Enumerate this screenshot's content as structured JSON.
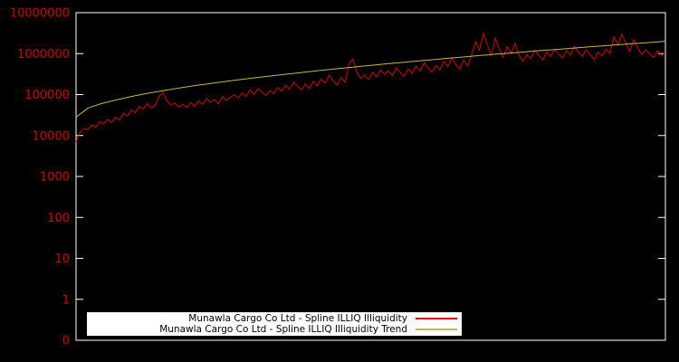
{
  "colors": {
    "background": "#000000",
    "border": "#ffffff",
    "tick_label": "#d40000",
    "legend_background": "#ffffff",
    "legend_text": "#000000"
  },
  "chart_data": {
    "type": "line",
    "title": "",
    "xlabel": "",
    "ylabel": "",
    "x_axis": {
      "tick_labels_visible": false
    },
    "y_axis": {
      "scale": "log",
      "tick_labels": [
        "10000000",
        "1000000",
        "100000",
        "10000",
        "1000",
        "100",
        "10",
        "1",
        "0"
      ],
      "tick_values": [
        10000000,
        1000000,
        100000,
        10000,
        1000,
        100,
        10,
        1,
        0.1
      ],
      "range_top": 10000000,
      "range_bottom": 0.1
    },
    "legend": {
      "position": "bottom-center"
    },
    "series": [
      {
        "name": "Munawla Cargo Co Ltd - Spline ILLIQ Illiquidity",
        "color": "#d40000",
        "values": [
          7000,
          12000,
          15000,
          14000,
          18000,
          16000,
          22000,
          19000,
          25000,
          21000,
          28000,
          24000,
          35000,
          30000,
          42000,
          36000,
          52000,
          44000,
          60000,
          47000,
          55000,
          90000,
          110000,
          70000,
          55000,
          62000,
          50000,
          58000,
          48000,
          65000,
          52000,
          70000,
          58000,
          80000,
          65000,
          75000,
          60000,
          90000,
          72000,
          85000,
          100000,
          82000,
          110000,
          90000,
          130000,
          100000,
          140000,
          115000,
          95000,
          125000,
          105000,
          150000,
          120000,
          170000,
          135000,
          200000,
          160000,
          130000,
          180000,
          140000,
          210000,
          165000,
          240000,
          190000,
          300000,
          220000,
          170000,
          260000,
          200000,
          550000,
          750000,
          350000,
          250000,
          300000,
          230000,
          350000,
          270000,
          400000,
          310000,
          380000,
          290000,
          450000,
          340000,
          280000,
          420000,
          330000,
          500000,
          380000,
          600000,
          450000,
          350000,
          520000,
          400000,
          650000,
          480000,
          800000,
          550000,
          420000,
          700000,
          500000,
          900000,
          2000000,
          1200000,
          3200000,
          1600000,
          900000,
          2400000,
          1300000,
          800000,
          1500000,
          1000000,
          1800000,
          900000,
          650000,
          950000,
          750000,
          1200000,
          900000,
          700000,
          1100000,
          850000,
          1300000,
          1000000,
          780000,
          1200000,
          920000,
          1500000,
          1100000,
          850000,
          1250000,
          950000,
          700000,
          1100000,
          880000,
          1300000,
          1000000,
          2600000,
          1600000,
          3000000,
          1800000,
          1100000,
          2200000,
          1400000,
          950000,
          1250000,
          1000000,
          800000,
          1200000,
          900000,
          1050000
        ]
      },
      {
        "name": "Munawla Cargo Co Ltd - Spline ILLIQ Illiquidity Trend",
        "color": "#c9b44c",
        "values": [
          28000,
          47000,
          59000,
          70000,
          82000,
          95000,
          108000,
          121000,
          136000,
          151000,
          167000,
          183000,
          201000,
          220000,
          239000,
          259000,
          281000,
          305000,
          328000,
          354000,
          380000,
          408000,
          437000,
          468000,
          500000,
          534000,
          569000,
          606000,
          644000,
          685000,
          728000,
          772000,
          818000,
          868000,
          918000,
          971000,
          1026000,
          1080000,
          1150000,
          1210000,
          1270000,
          1340000,
          1410000,
          1490000,
          1560000,
          1640000,
          1730000,
          1810000,
          1900000,
          2000000
        ]
      }
    ]
  }
}
